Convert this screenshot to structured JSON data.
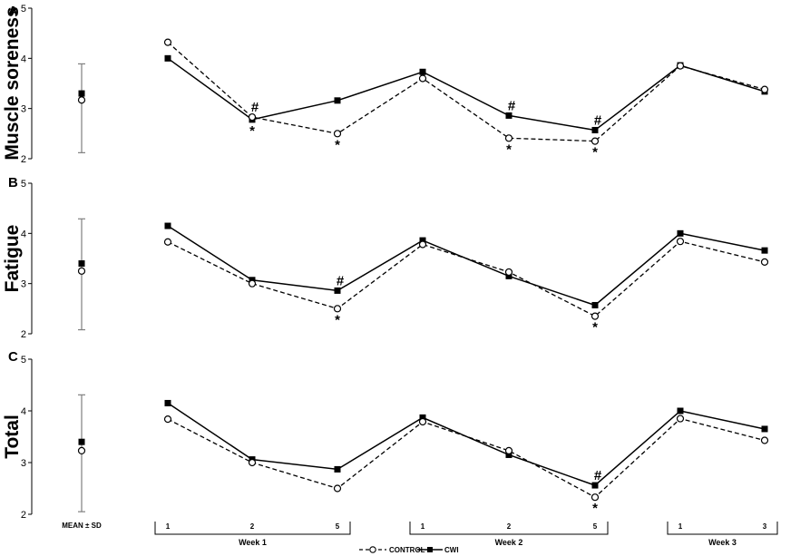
{
  "chart_data": [
    {
      "type": "line",
      "panel": "A",
      "ylabel": "Muscle soreness",
      "ylim": [
        2,
        5
      ],
      "yticks": [
        "2",
        "3",
        "4",
        "5"
      ],
      "summary": {
        "label": "MEAN ± SD",
        "control_mean": 3.17,
        "cwi_mean": 3.3,
        "sd_low": 2.12,
        "sd_high": 3.89
      },
      "series": [
        {
          "name": "CONTROL",
          "values": [
            4.32,
            2.83,
            2.5,
            3.6,
            2.41,
            2.35,
            3.85,
            3.38
          ]
        },
        {
          "name": "CWI",
          "values": [
            4.0,
            2.78,
            3.16,
            3.73,
            2.86,
            2.57,
            3.86,
            3.34
          ]
        }
      ],
      "annotations": [
        {
          "point": 1,
          "symbol": "#",
          "y": 2.83
        },
        {
          "point": 1,
          "symbol": "*",
          "y": 2.78
        },
        {
          "point": 2,
          "symbol": "*",
          "y": 2.5
        },
        {
          "point": 4,
          "symbol": "#",
          "y": 2.86
        },
        {
          "point": 4,
          "symbol": "*",
          "y": 2.41
        },
        {
          "point": 5,
          "symbol": "#",
          "y": 2.57
        },
        {
          "point": 5,
          "symbol": "*",
          "y": 2.35
        }
      ]
    },
    {
      "type": "line",
      "panel": "B",
      "ylabel": "Fatigue",
      "ylim": [
        2,
        5
      ],
      "yticks": [
        "2",
        "3",
        "4",
        "5"
      ],
      "summary": {
        "label": "MEAN ± SD",
        "control_mean": 3.25,
        "cwi_mean": 3.4,
        "sd_low": 2.08,
        "sd_high": 4.29
      },
      "series": [
        {
          "name": "CONTROL",
          "values": [
            3.83,
            3.0,
            2.5,
            3.78,
            3.23,
            2.35,
            3.84,
            3.43
          ]
        },
        {
          "name": "CWI",
          "values": [
            4.15,
            3.07,
            2.86,
            3.86,
            3.15,
            2.57,
            4.0,
            3.66
          ]
        }
      ],
      "annotations": [
        {
          "point": 2,
          "symbol": "#",
          "y": 2.86
        },
        {
          "point": 2,
          "symbol": "*",
          "y": 2.5
        },
        {
          "point": 5,
          "symbol": "*",
          "y": 2.35
        }
      ]
    },
    {
      "type": "line",
      "panel": "C",
      "ylabel": "Total",
      "ylim": [
        2,
        5
      ],
      "yticks": [
        "2",
        "3",
        "4",
        "5"
      ],
      "summary": {
        "label": "MEAN ± SD",
        "control_mean": 3.23,
        "cwi_mean": 3.4,
        "sd_low": 2.05,
        "sd_high": 4.31
      },
      "series": [
        {
          "name": "CONTROL",
          "values": [
            3.84,
            3.0,
            2.5,
            3.79,
            3.23,
            2.33,
            3.85,
            3.43
          ]
        },
        {
          "name": "CWI",
          "values": [
            4.15,
            3.06,
            2.87,
            3.87,
            3.15,
            2.56,
            4.0,
            3.65
          ]
        }
      ],
      "annotations": [
        {
          "point": 5,
          "symbol": "#",
          "y": 2.56
        },
        {
          "point": 5,
          "symbol": "*",
          "y": 2.33
        }
      ]
    }
  ],
  "x_axis": {
    "tick_labels": [
      "1",
      "2",
      "5",
      "1",
      "2",
      "5",
      "1",
      "3"
    ],
    "groups": [
      {
        "label": "Week 1",
        "from": 0,
        "to": 2
      },
      {
        "label": "Week 2",
        "from": 3,
        "to": 5
      },
      {
        "label": "Week 3",
        "from": 6,
        "to": 7
      }
    ]
  },
  "legend": {
    "position": "bottom-center",
    "entries": [
      {
        "label": "CONTROL",
        "line": "dashed",
        "marker": "open-circle"
      },
      {
        "label": "CWI",
        "line": "solid",
        "marker": "filled-square"
      }
    ]
  },
  "colors": {
    "line": "#000000",
    "error_bar": "#7f7f7f",
    "background": "#ffffff"
  }
}
